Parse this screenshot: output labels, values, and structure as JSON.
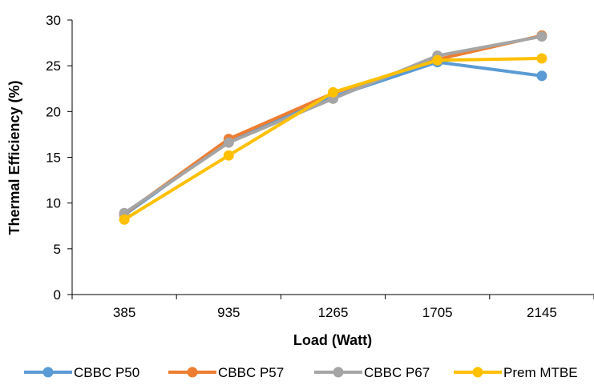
{
  "chart_data": {
    "type": "line",
    "title": "",
    "xlabel": "Load (Watt)",
    "ylabel": "Thermal Efficiency (%)",
    "categories": [
      "385",
      "935",
      "1265",
      "1705",
      "2145"
    ],
    "ylim": [
      0,
      30
    ],
    "yticks": [
      0,
      5,
      10,
      15,
      20,
      25,
      30
    ],
    "grid": false,
    "legend_position": "bottom",
    "series": [
      {
        "name": "CBBC P50",
        "color": "#5B9BD5",
        "values": [
          8.7,
          16.8,
          21.6,
          25.4,
          23.9
        ]
      },
      {
        "name": "CBBC P57",
        "color": "#ED7D31",
        "values": [
          8.8,
          17.0,
          22.0,
          25.7,
          28.3
        ]
      },
      {
        "name": "CBBC P67",
        "color": "#A5A5A5",
        "values": [
          8.9,
          16.6,
          21.4,
          26.1,
          28.2
        ]
      },
      {
        "name": "Prem MTBE",
        "color": "#FFC000",
        "values": [
          8.2,
          15.2,
          22.1,
          25.6,
          25.8
        ]
      }
    ]
  }
}
